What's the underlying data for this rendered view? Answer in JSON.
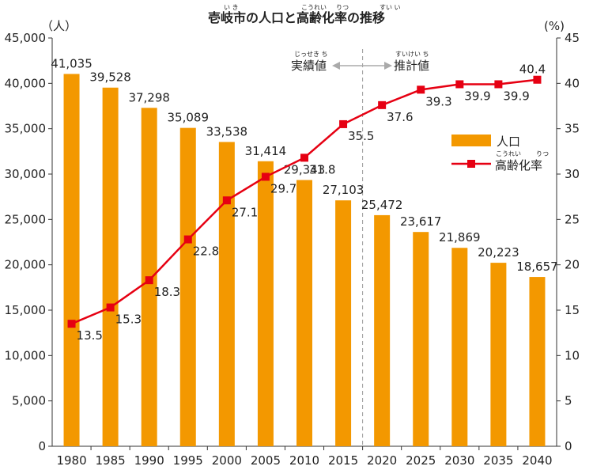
{
  "chart_data": {
    "type": "bar+line",
    "title": "壱岐市の人口と高齢化率の推移",
    "title_ruby": [
      {
        "base": "壱岐",
        "ruby": "い き"
      },
      {
        "base": "高齢",
        "ruby": "こうれい"
      },
      {
        "base": "率",
        "ruby": "りつ"
      },
      {
        "base": "推移",
        "ruby": "すい い"
      }
    ],
    "categories": [
      "1980",
      "1985",
      "1990",
      "1995",
      "2000",
      "2005",
      "2010",
      "2015",
      "2020",
      "2025",
      "2030",
      "2035",
      "2040"
    ],
    "series": [
      {
        "name": "人口",
        "type": "bar",
        "axis": "left",
        "color": "#f39800",
        "values": [
          41035,
          39528,
          37298,
          35089,
          33538,
          31414,
          29343,
          27103,
          25472,
          23617,
          21869,
          20223,
          18657
        ],
        "labels": [
          "41,035",
          "39,528",
          "37,298",
          "35,089",
          "33,538",
          "31,414",
          "29,343",
          "27,103",
          "25,472",
          "23,617",
          "21,869",
          "20,223",
          "18,657"
        ]
      },
      {
        "name": "高齢化率",
        "name_ruby": [
          {
            "base": "高齢",
            "ruby": "こうれい"
          },
          {
            "base": "率",
            "ruby": "りつ"
          }
        ],
        "type": "line",
        "axis": "right",
        "color": "#e60012",
        "values": [
          13.5,
          15.3,
          18.3,
          22.8,
          27.1,
          29.7,
          31.8,
          35.5,
          37.6,
          39.3,
          39.9,
          39.9,
          40.4
        ],
        "labels": [
          "13.5",
          "15.3",
          "18.3",
          "22.8",
          "27.1",
          "29.7",
          "31.8",
          "35.5",
          "37.6",
          "39.3",
          "39.9",
          "39.9",
          "40.4"
        ]
      }
    ],
    "y_left": {
      "unit_label": "（人）",
      "ylim": [
        0,
        45000
      ],
      "ticks": [
        0,
        5000,
        10000,
        15000,
        20000,
        25000,
        30000,
        35000,
        40000,
        45000
      ],
      "tick_labels": [
        "0",
        "5,000",
        "10,000",
        "15,000",
        "20,000",
        "25,000",
        "30,000",
        "35,000",
        "40,000",
        "45,000"
      ]
    },
    "y_right": {
      "unit_label": "(%)",
      "ylim": [
        0,
        45
      ],
      "ticks": [
        0,
        5,
        10,
        15,
        20,
        25,
        30,
        35,
        40,
        45
      ],
      "tick_labels": [
        "0",
        "5",
        "10",
        "15",
        "20",
        "25",
        "30",
        "35",
        "40",
        "45"
      ]
    },
    "annotations": {
      "actual": {
        "text": "実績値",
        "ruby": "じっせき ち"
      },
      "forecast": {
        "text": "推計値",
        "ruby": "すいけい ち"
      },
      "divider_between": [
        "2015",
        "2020"
      ]
    },
    "legend_position": "right",
    "grid": false
  },
  "colors": {
    "bar": "#f39800",
    "line": "#e60012",
    "axis": "#333333",
    "divider": "#999999"
  }
}
